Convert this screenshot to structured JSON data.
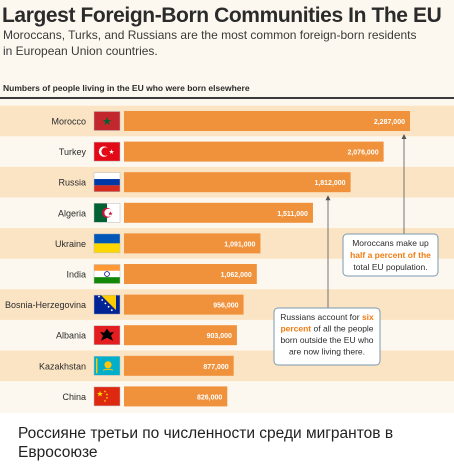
{
  "title": "Largest Foreign-Born Communities In The EU",
  "subtitle": "Moroccans, Turks, and Russians are the most common foreign-born residents in European Union countries.",
  "section_label": "Numbers of people living in the EU who were born elsewhere",
  "caption": "Россияне третьи по численности среди мигрантов в Евросоюзе",
  "colors": {
    "bar": "#f0913b",
    "stripe": "#fbe4c4",
    "background": "#fdf8ef",
    "highlight": "#f07c12",
    "annotation_border": "#7a9aae"
  },
  "chart_data": {
    "type": "bar",
    "orientation": "horizontal",
    "categories": [
      "Morocco",
      "Turkey",
      "Russia",
      "Algeria",
      "Ukraine",
      "India",
      "Bosnia-Herzegovina",
      "Albania",
      "Kazakhstan",
      "China"
    ],
    "values": [
      2287000,
      2076000,
      1812000,
      1511000,
      1091000,
      1062000,
      956000,
      903000,
      877000,
      826000
    ],
    "value_labels": [
      "2,287,000",
      "2,076,000",
      "1,812,000",
      "1,511,000",
      "1,091,000",
      "1,062,000",
      "956,000",
      "903,000",
      "877,000",
      "826,000"
    ],
    "flags": [
      "morocco-flag-icon",
      "turkey-flag-icon",
      "russia-flag-icon",
      "algeria-flag-icon",
      "ukraine-flag-icon",
      "india-flag-icon",
      "bosnia-herzegovina-flag-icon",
      "albania-flag-icon",
      "kazakhstan-flag-icon",
      "china-flag-icon"
    ],
    "annotations": [
      {
        "target": "Morocco",
        "lines": [
          [
            {
              "text": "Moroccans make up",
              "bold": false
            }
          ],
          [
            {
              "text": "half a percent of the",
              "bold": true
            }
          ],
          [
            {
              "text": "total EU population.",
              "bold": false
            }
          ]
        ]
      },
      {
        "target": "Russia",
        "lines": [
          [
            {
              "text": "Russians account for ",
              "bold": false
            },
            {
              "text": "six",
              "bold": true
            }
          ],
          [
            {
              "text": "percent",
              "bold": true
            },
            {
              "text": " of all the people",
              "bold": false
            }
          ],
          [
            {
              "text": "born outside the EU who",
              "bold": false
            }
          ],
          [
            {
              "text": "are now living there.",
              "bold": false
            }
          ]
        ]
      }
    ]
  }
}
